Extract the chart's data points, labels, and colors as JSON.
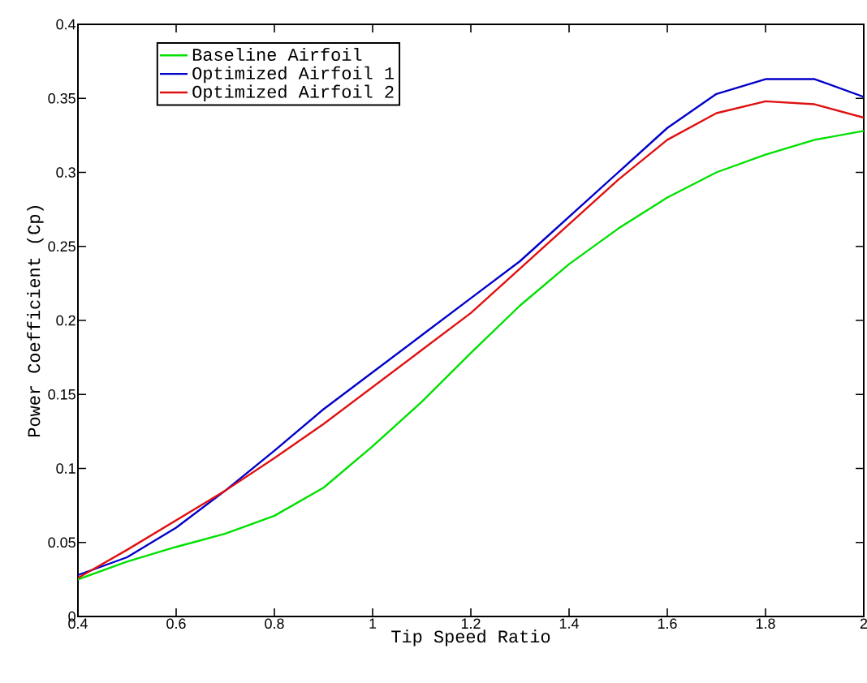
{
  "chart_data": {
    "type": "line",
    "xlabel": "Tip Speed Ratio",
    "ylabel": "Power Coefficient (Cp)",
    "x": [
      0.4,
      0.5,
      0.6,
      0.7,
      0.8,
      0.9,
      1.0,
      1.1,
      1.2,
      1.3,
      1.4,
      1.5,
      1.6,
      1.7,
      1.8,
      1.9,
      2.0
    ],
    "series": [
      {
        "name": "Baseline Airfoil",
        "color": "#00e000",
        "values": [
          0.025,
          0.037,
          0.047,
          0.056,
          0.068,
          0.087,
          0.115,
          0.145,
          0.178,
          0.21,
          0.238,
          0.262,
          0.283,
          0.3,
          0.312,
          0.322,
          0.328
        ]
      },
      {
        "name": "Optimized Airfoil 1",
        "color": "#0000c8",
        "values": [
          0.028,
          0.04,
          0.06,
          0.085,
          0.112,
          0.14,
          0.165,
          0.19,
          0.215,
          0.24,
          0.27,
          0.3,
          0.33,
          0.353,
          0.363,
          0.363,
          0.351
        ]
      },
      {
        "name": "Optimized Airfoil 2",
        "color": "#e01010",
        "values": [
          0.026,
          0.045,
          0.065,
          0.085,
          0.107,
          0.13,
          0.155,
          0.18,
          0.205,
          0.235,
          0.265,
          0.295,
          0.322,
          0.34,
          0.348,
          0.346,
          0.337
        ]
      }
    ],
    "xlim": [
      0.4,
      2
    ],
    "ylim": [
      0,
      0.4
    ],
    "xticks": [
      0.4,
      0.6,
      0.8,
      1,
      1.2,
      1.4,
      1.6,
      1.8,
      2
    ],
    "yticks": [
      0,
      0.05,
      0.1,
      0.15,
      0.2,
      0.25,
      0.3,
      0.35,
      0.4
    ],
    "legend": "top left",
    "grid": false,
    "marker": "none",
    "line_style": "solid"
  }
}
